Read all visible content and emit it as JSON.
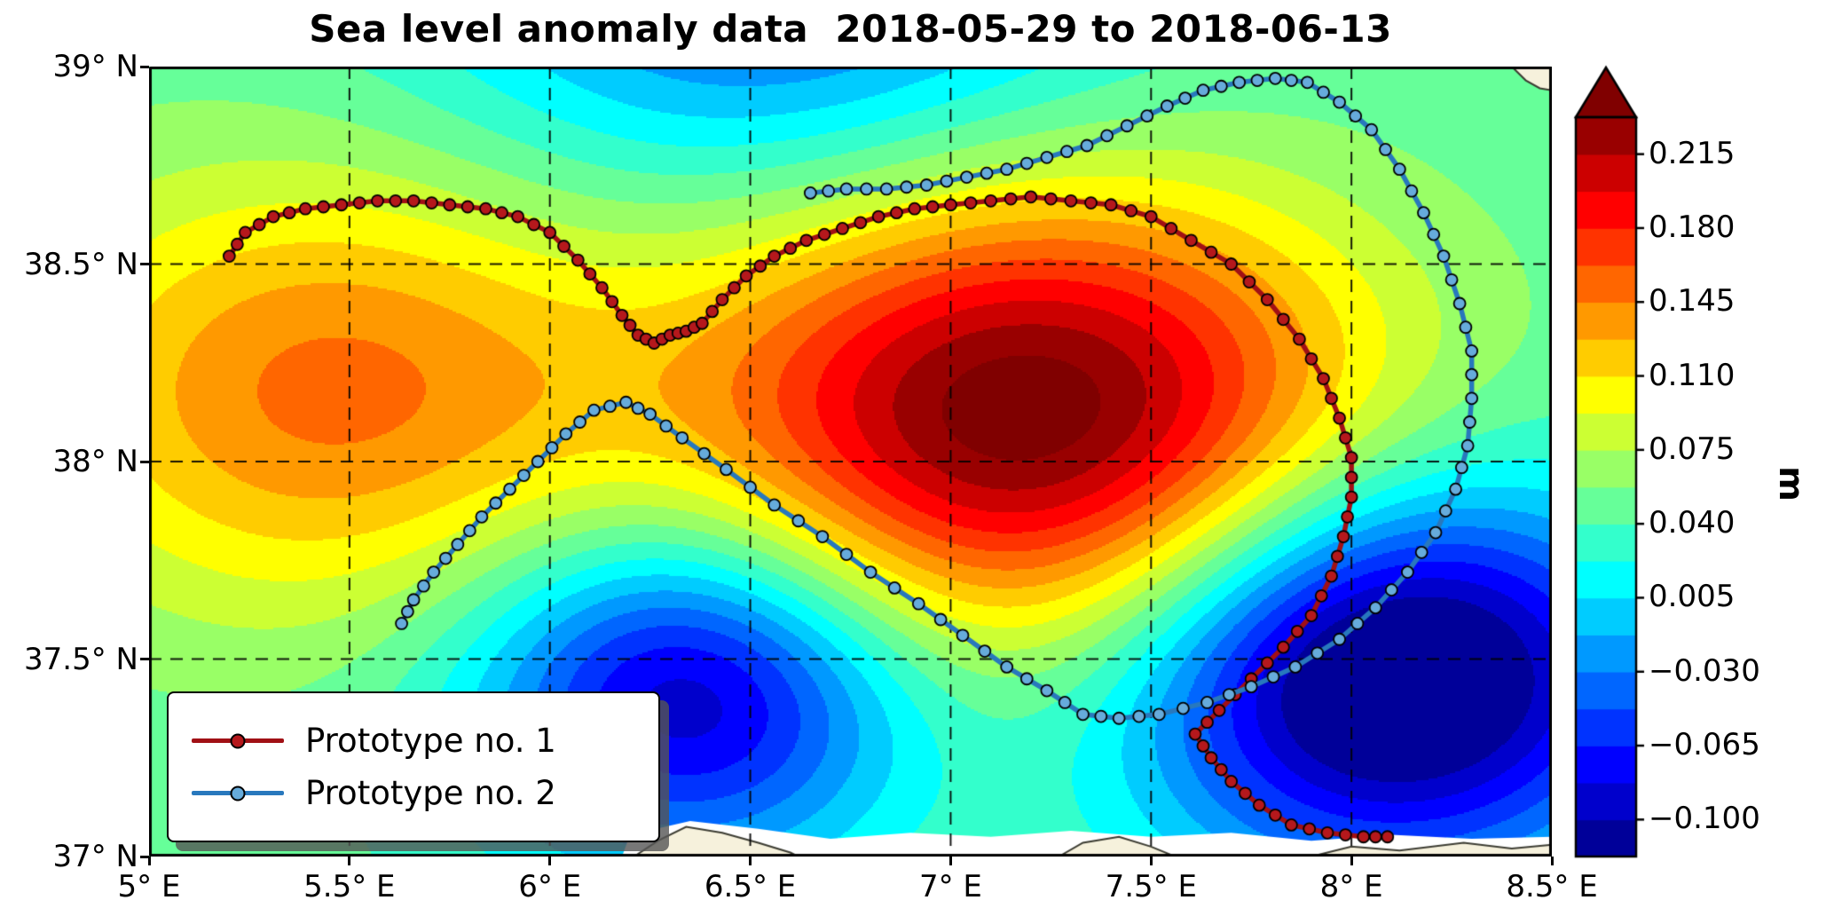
{
  "title": "Sea level anomaly data  2018-05-29 to 2018-06-13",
  "axes": {
    "lon_min": 5,
    "lon_max": 8.5,
    "lat_min": 37,
    "lat_max": 39,
    "x_ticks": [
      {
        "value": 5,
        "label": "5° E"
      },
      {
        "value": 5.5,
        "label": "5.5° E"
      },
      {
        "value": 6,
        "label": "6° E"
      },
      {
        "value": 6.5,
        "label": "6.5° E"
      },
      {
        "value": 7,
        "label": "7° E"
      },
      {
        "value": 7.5,
        "label": "7.5° E"
      },
      {
        "value": 8,
        "label": "8° E"
      },
      {
        "value": 8.5,
        "label": "8.5° E"
      }
    ],
    "y_ticks": [
      {
        "value": 37,
        "label": "37° N"
      },
      {
        "value": 37.5,
        "label": "37.5° N"
      },
      {
        "value": 38,
        "label": "38° N"
      },
      {
        "value": 38.5,
        "label": "38.5° N"
      },
      {
        "value": 39,
        "label": "39° N"
      }
    ],
    "grid_lon": [
      5.5,
      6,
      6.5,
      7,
      7.5,
      8
    ],
    "grid_lat": [
      37.5,
      38,
      38.5
    ]
  },
  "colorbar": {
    "label": "m",
    "min": -0.1175,
    "max": 0.2325,
    "level_step": 0.0175,
    "ticks": [
      {
        "value": 0.215,
        "label": "0.215"
      },
      {
        "value": 0.18,
        "label": "0.180"
      },
      {
        "value": 0.145,
        "label": "0.145"
      },
      {
        "value": 0.11,
        "label": "0.110"
      },
      {
        "value": 0.075,
        "label": "0.075"
      },
      {
        "value": 0.04,
        "label": "0.040"
      },
      {
        "value": 0.005,
        "label": "0.005"
      },
      {
        "value": -0.03,
        "label": "−0.030"
      },
      {
        "value": -0.065,
        "label": "−0.065"
      },
      {
        "value": -0.1,
        "label": "−0.100"
      }
    ]
  },
  "legend": {
    "items": [
      {
        "label": "Prototype no. 1"
      },
      {
        "label": "Prototype no. 2"
      }
    ]
  },
  "colors": {
    "proto1_line": "#a11015",
    "proto1_marker": "#b5181c",
    "proto2_line": "#2878bd",
    "proto2_marker": "#66abdb",
    "land": "#f6f1dc",
    "coast_outline": "#3c3c32"
  },
  "chart_data": {
    "type": "heatmap",
    "title": "Sea level anomaly data",
    "date_range": "2018-05-29 to 2018-06-13",
    "unit": "m",
    "lon_range": [
      5,
      8.5
    ],
    "lat_range": [
      37,
      39
    ],
    "value_range": [
      -0.1175,
      0.2325
    ],
    "colormap": "jet",
    "field": {
      "background": 0.045,
      "gaussians": [
        {
          "lon": 7.2,
          "lat": 38.12,
          "amplitude": 0.205,
          "sigma_lon": 0.58,
          "sigma_lat": 0.4
        },
        {
          "lon": 5.45,
          "lat": 38.18,
          "amplitude": 0.105,
          "sigma_lon": 0.55,
          "sigma_lat": 0.4
        },
        {
          "lon": 6.35,
          "lat": 37.42,
          "amplitude": -0.15,
          "sigma_lon": 0.38,
          "sigma_lat": 0.3
        },
        {
          "lon": 8.1,
          "lat": 37.46,
          "amplitude": -0.205,
          "sigma_lon": 0.45,
          "sigma_lat": 0.34
        },
        {
          "lon": 6.55,
          "lat": 39.25,
          "amplitude": -0.095,
          "sigma_lon": 0.6,
          "sigma_lat": 0.4
        }
      ]
    },
    "series": [
      {
        "id": "proto1",
        "name": "Prototype no. 1",
        "points": [
          [
            5.2,
            38.52
          ],
          [
            5.24,
            38.58
          ],
          [
            5.31,
            38.62
          ],
          [
            5.39,
            38.64
          ],
          [
            5.48,
            38.65
          ],
          [
            5.57,
            38.66
          ],
          [
            5.66,
            38.66
          ],
          [
            5.75,
            38.65
          ],
          [
            5.84,
            38.64
          ],
          [
            5.92,
            38.62
          ],
          [
            6.0,
            38.58
          ],
          [
            6.07,
            38.51
          ],
          [
            6.13,
            38.44
          ],
          [
            6.18,
            38.37
          ],
          [
            6.22,
            38.32
          ],
          [
            6.26,
            38.3
          ],
          [
            6.3,
            38.32
          ],
          [
            6.34,
            38.33
          ],
          [
            6.38,
            38.35
          ],
          [
            6.43,
            38.41
          ],
          [
            6.49,
            38.47
          ],
          [
            6.56,
            38.52
          ],
          [
            6.64,
            38.56
          ],
          [
            6.73,
            38.59
          ],
          [
            6.82,
            38.62
          ],
          [
            6.91,
            38.64
          ],
          [
            7.0,
            38.65
          ],
          [
            7.1,
            38.66
          ],
          [
            7.2,
            38.67
          ],
          [
            7.3,
            38.66
          ],
          [
            7.4,
            38.65
          ],
          [
            7.5,
            38.62
          ],
          [
            7.6,
            38.56
          ],
          [
            7.7,
            38.5
          ],
          [
            7.79,
            38.41
          ],
          [
            7.87,
            38.31
          ],
          [
            7.93,
            38.21
          ],
          [
            7.97,
            38.11
          ],
          [
            8.0,
            38.01
          ],
          [
            8.0,
            37.91
          ],
          [
            7.98,
            37.81
          ],
          [
            7.95,
            37.71
          ],
          [
            7.9,
            37.61
          ],
          [
            7.83,
            37.53
          ],
          [
            7.75,
            37.45
          ],
          [
            7.67,
            37.37
          ],
          [
            7.61,
            37.31
          ],
          [
            7.65,
            37.25
          ],
          [
            7.7,
            37.19
          ],
          [
            7.77,
            37.13
          ],
          [
            7.85,
            37.08
          ],
          [
            7.94,
            37.06
          ],
          [
            8.03,
            37.05
          ],
          [
            8.09,
            37.05
          ]
        ]
      },
      {
        "id": "proto2",
        "name": "Prototype no. 2",
        "points": [
          [
            6.65,
            38.68
          ],
          [
            6.74,
            38.69
          ],
          [
            6.84,
            38.69
          ],
          [
            6.94,
            38.7
          ],
          [
            7.04,
            38.72
          ],
          [
            7.14,
            38.74
          ],
          [
            7.24,
            38.77
          ],
          [
            7.34,
            38.8
          ],
          [
            7.44,
            38.85
          ],
          [
            7.54,
            38.9
          ],
          [
            7.63,
            38.94
          ],
          [
            7.72,
            38.96
          ],
          [
            7.81,
            38.97
          ],
          [
            7.89,
            38.96
          ],
          [
            7.97,
            38.91
          ],
          [
            8.05,
            38.84
          ],
          [
            8.12,
            38.74
          ],
          [
            8.18,
            38.63
          ],
          [
            8.23,
            38.52
          ],
          [
            8.27,
            38.4
          ],
          [
            8.3,
            38.28
          ],
          [
            8.3,
            38.16
          ],
          [
            8.29,
            38.04
          ],
          [
            8.26,
            37.93
          ],
          [
            8.21,
            37.82
          ],
          [
            8.14,
            37.72
          ],
          [
            8.06,
            37.63
          ],
          [
            7.97,
            37.55
          ],
          [
            7.86,
            37.48
          ],
          [
            7.75,
            37.43
          ],
          [
            7.64,
            37.39
          ],
          [
            7.52,
            37.36
          ],
          [
            7.42,
            37.35
          ],
          [
            7.33,
            37.36
          ],
          [
            7.24,
            37.42
          ],
          [
            7.14,
            37.48
          ],
          [
            7.03,
            37.56
          ],
          [
            6.92,
            37.64
          ],
          [
            6.8,
            37.72
          ],
          [
            6.68,
            37.81
          ],
          [
            6.56,
            37.89
          ],
          [
            6.44,
            37.98
          ],
          [
            6.33,
            38.06
          ],
          [
            6.25,
            38.12
          ],
          [
            6.19,
            38.15
          ],
          [
            6.11,
            38.13
          ],
          [
            6.04,
            38.07
          ],
          [
            5.97,
            38.0
          ],
          [
            5.9,
            37.93
          ],
          [
            5.83,
            37.86
          ],
          [
            5.77,
            37.79
          ],
          [
            5.71,
            37.72
          ],
          [
            5.66,
            37.65
          ],
          [
            5.63,
            37.59
          ]
        ]
      }
    ],
    "coast": {
      "no_data_strip": [
        [
          6.18,
          37.0
        ],
        [
          6.2,
          37.055
        ],
        [
          6.35,
          37.09
        ],
        [
          6.52,
          37.07
        ],
        [
          6.7,
          37.045
        ],
        [
          6.9,
          37.06
        ],
        [
          7.1,
          37.05
        ],
        [
          7.3,
          37.065
        ],
        [
          7.5,
          37.05
        ],
        [
          7.7,
          37.06
        ],
        [
          7.9,
          37.04
        ],
        [
          8.1,
          37.055
        ],
        [
          8.3,
          37.045
        ],
        [
          8.5,
          37.05
        ],
        [
          8.5,
          37.0
        ]
      ],
      "land": [
        [
          [
            6.21,
            37.0
          ],
          [
            6.27,
            37.04
          ],
          [
            6.34,
            37.075
          ],
          [
            6.43,
            37.06
          ],
          [
            6.52,
            37.035
          ],
          [
            6.6,
            37.01
          ],
          [
            6.62,
            37.0
          ]
        ],
        [
          [
            7.27,
            37.0
          ],
          [
            7.33,
            37.035
          ],
          [
            7.42,
            37.05
          ],
          [
            7.5,
            37.025
          ],
          [
            7.56,
            37.0
          ]
        ],
        [
          [
            7.9,
            37.0
          ],
          [
            8.0,
            37.025
          ],
          [
            8.12,
            37.015
          ],
          [
            8.28,
            37.035
          ],
          [
            8.4,
            37.02
          ],
          [
            8.5,
            37.03
          ],
          [
            8.5,
            37.0
          ]
        ],
        [
          [
            8.4,
            39.0
          ],
          [
            8.435,
            38.965
          ],
          [
            8.47,
            38.945
          ],
          [
            8.5,
            38.94
          ],
          [
            8.5,
            39.0
          ]
        ]
      ]
    }
  }
}
